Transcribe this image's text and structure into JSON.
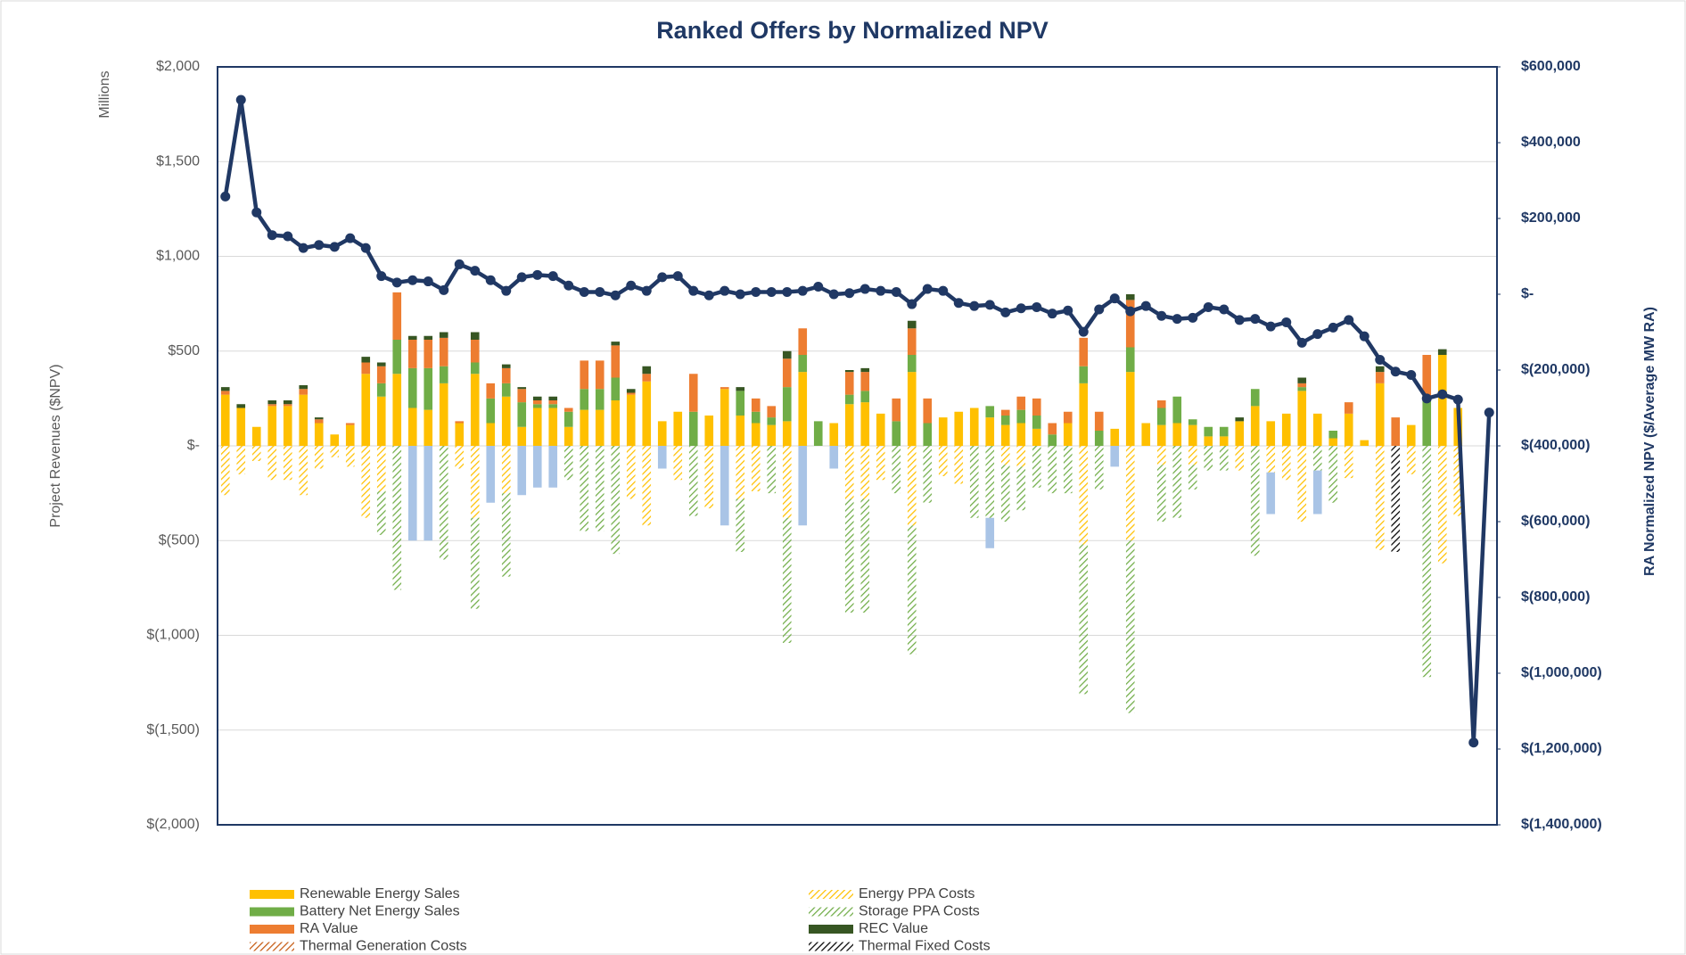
{
  "chart_data": {
    "type": "bar",
    "stacked": true,
    "title": "Ranked Offers by Normalized NPV",
    "ylabel": "Project Revenues ($NPV)",
    "yunit": "Millions",
    "y2label": "RA Normalized NPV ($/Average MW RA)",
    "ylim": [
      -2000,
      2000
    ],
    "yticks": [
      {
        "value": 2000,
        "label": "$2,000"
      },
      {
        "value": 1500,
        "label": "$1,500"
      },
      {
        "value": 1000,
        "label": "$1,000"
      },
      {
        "value": 500,
        "label": "$500"
      },
      {
        "value": 0,
        "label": "$-"
      },
      {
        "value": -500,
        "label": "$(500)"
      },
      {
        "value": -1000,
        "label": "$(1,000)"
      },
      {
        "value": -1500,
        "label": "$(1,500)"
      },
      {
        "value": -2000,
        "label": "$(2,000)"
      }
    ],
    "y2lim": [
      -1400000,
      600000
    ],
    "y2ticks": [
      {
        "value": 600000,
        "label": "$600,000"
      },
      {
        "value": 400000,
        "label": "$400,000"
      },
      {
        "value": 200000,
        "label": "$200,000"
      },
      {
        "value": 0,
        "label": "$-"
      },
      {
        "value": -200000,
        "label": "$(200,000)"
      },
      {
        "value": -400000,
        "label": "$(400,000)"
      },
      {
        "value": -600000,
        "label": "$(600,000)"
      },
      {
        "value": -800000,
        "label": "$(800,000)"
      },
      {
        "value": -1000000,
        "label": "$(1,000,000)"
      },
      {
        "value": -1200000,
        "label": "$(1,200,000)"
      },
      {
        "value": -1400000,
        "label": "$(1,400,000)"
      }
    ],
    "grid": true,
    "categories": [
      null,
      null,
      null,
      null,
      null,
      null,
      null,
      null,
      null,
      null,
      null,
      null,
      null,
      null,
      null,
      null,
      null,
      null,
      null,
      null,
      null,
      null,
      null,
      null,
      null,
      null,
      null,
      null,
      null,
      null,
      null,
      null,
      null,
      null,
      null,
      null,
      null,
      null,
      null,
      null,
      null,
      null,
      null,
      null,
      null,
      null,
      null,
      null,
      null,
      null,
      null,
      null,
      null,
      null,
      null,
      null,
      null,
      null,
      null,
      null,
      null,
      null,
      null,
      null,
      null,
      null,
      null,
      null,
      null,
      null,
      null,
      null,
      null,
      null,
      null,
      null,
      null,
      null,
      null,
      null,
      null,
      null
    ],
    "series": [
      {
        "name": "Renewable Energy Sales",
        "color": "#ffc000",
        "hatch": false,
        "values": [
          270,
          200,
          100,
          210,
          210,
          270,
          120,
          60,
          110,
          380,
          260,
          380,
          200,
          190,
          330,
          120,
          380,
          120,
          260,
          100,
          200,
          200,
          100,
          190,
          190,
          240,
          270,
          340,
          130,
          180,
          0,
          160,
          300,
          160,
          120,
          110,
          130,
          390,
          0,
          120,
          220,
          230,
          170,
          0,
          390,
          0,
          150,
          180,
          200,
          150,
          110,
          120,
          90,
          0,
          120,
          330,
          0,
          90,
          390,
          120,
          110,
          120,
          110,
          50,
          50,
          130,
          210,
          130,
          170,
          290,
          170,
          40,
          170,
          30,
          330,
          0,
          110,
          0,
          480,
          200,
          0,
          0
        ]
      },
      {
        "name": "Energy PPA Costs",
        "color": "#ffc000",
        "hatch": true,
        "values": [
          -260,
          -150,
          -80,
          -180,
          -180,
          -260,
          -120,
          -60,
          -110,
          -380,
          -240,
          0,
          0,
          0,
          0,
          -120,
          -380,
          0,
          -250,
          0,
          0,
          0,
          0,
          0,
          0,
          0,
          -280,
          -420,
          0,
          -180,
          0,
          -330,
          0,
          -280,
          -240,
          0,
          -380,
          0,
          0,
          0,
          -280,
          -280,
          -180,
          0,
          -420,
          0,
          -160,
          -200,
          0,
          0,
          -100,
          -110,
          0,
          0,
          0,
          -520,
          0,
          0,
          -500,
          0,
          -100,
          0,
          -100,
          0,
          0,
          -130,
          0,
          -140,
          -180,
          -400,
          0,
          0,
          -170,
          0,
          -550,
          0,
          -150,
          0,
          -620,
          -370,
          0,
          0
        ]
      },
      {
        "name": "Battery Net Energy Sales",
        "color": "#70ad47",
        "hatch": false,
        "values": [
          0,
          0,
          0,
          0,
          0,
          0,
          0,
          0,
          0,
          0,
          70,
          180,
          210,
          220,
          90,
          0,
          60,
          130,
          70,
          130,
          20,
          20,
          80,
          110,
          110,
          120,
          0,
          0,
          0,
          0,
          180,
          0,
          0,
          130,
          60,
          40,
          180,
          90,
          130,
          0,
          50,
          60,
          0,
          130,
          90,
          120,
          0,
          0,
          0,
          60,
          50,
          70,
          70,
          60,
          0,
          90,
          80,
          0,
          130,
          0,
          90,
          140,
          30,
          50,
          50,
          0,
          90,
          0,
          0,
          20,
          0,
          40,
          0,
          0,
          0,
          0,
          0,
          240,
          0,
          0,
          0,
          0
        ]
      },
      {
        "name": "Storage PPA Costs",
        "color": "#70ad47",
        "hatch": true,
        "values": [
          0,
          0,
          0,
          0,
          0,
          0,
          0,
          0,
          0,
          0,
          -230,
          -760,
          0,
          0,
          -600,
          0,
          -480,
          0,
          -440,
          0,
          0,
          0,
          -180,
          -450,
          -450,
          -570,
          0,
          0,
          0,
          0,
          -370,
          0,
          0,
          -280,
          0,
          -250,
          -660,
          0,
          0,
          0,
          -600,
          -600,
          0,
          -250,
          -680,
          -300,
          0,
          0,
          -380,
          -380,
          -300,
          -230,
          -220,
          -250,
          -250,
          -790,
          -230,
          0,
          -910,
          0,
          -300,
          -380,
          -130,
          -130,
          -130,
          0,
          -580,
          0,
          0,
          0,
          -130,
          -300,
          0,
          0,
          0,
          0,
          0,
          -1220,
          0,
          0,
          0,
          0
        ]
      },
      {
        "name": "RA Value",
        "color": "#ed7d31",
        "hatch": false,
        "values": [
          20,
          0,
          0,
          10,
          10,
          30,
          20,
          0,
          10,
          60,
          90,
          250,
          150,
          150,
          150,
          10,
          120,
          80,
          80,
          70,
          20,
          20,
          20,
          150,
          150,
          170,
          10,
          40,
          0,
          0,
          200,
          0,
          10,
          0,
          70,
          60,
          150,
          140,
          0,
          0,
          120,
          100,
          0,
          120,
          140,
          130,
          0,
          0,
          0,
          0,
          30,
          70,
          90,
          60,
          60,
          150,
          100,
          0,
          250,
          0,
          40,
          0,
          0,
          0,
          0,
          0,
          0,
          0,
          0,
          20,
          0,
          0,
          60,
          0,
          60,
          150,
          0,
          240,
          0,
          0,
          0,
          0
        ]
      },
      {
        "name": "REC Value",
        "color": "#375623",
        "hatch": false,
        "values": [
          20,
          20,
          0,
          20,
          20,
          20,
          10,
          0,
          0,
          30,
          20,
          0,
          20,
          20,
          30,
          0,
          40,
          0,
          20,
          10,
          20,
          20,
          0,
          0,
          0,
          20,
          20,
          40,
          0,
          0,
          0,
          0,
          0,
          20,
          0,
          0,
          40,
          0,
          0,
          0,
          10,
          20,
          0,
          0,
          40,
          0,
          0,
          0,
          0,
          0,
          0,
          0,
          0,
          0,
          0,
          0,
          0,
          0,
          30,
          0,
          0,
          0,
          0,
          0,
          0,
          20,
          0,
          0,
          0,
          30,
          0,
          0,
          0,
          0,
          30,
          0,
          0,
          0,
          30,
          0,
          0,
          0
        ]
      },
      {
        "name": "Thermal Generation Costs",
        "color": "#c55a11",
        "hatch": true,
        "values": [
          0,
          0,
          0,
          0,
          0,
          0,
          0,
          0,
          0,
          0,
          0,
          0,
          0,
          0,
          0,
          0,
          0,
          0,
          0,
          0,
          0,
          0,
          0,
          0,
          0,
          0,
          0,
          0,
          0,
          0,
          0,
          0,
          0,
          0,
          0,
          0,
          0,
          0,
          0,
          0,
          0,
          0,
          0,
          0,
          0,
          0,
          0,
          0,
          0,
          0,
          0,
          0,
          0,
          0,
          0,
          0,
          0,
          0,
          0,
          0,
          0,
          0,
          0,
          0,
          0,
          0,
          0,
          0,
          0,
          0,
          0,
          0,
          0,
          0,
          0,
          0,
          0,
          0,
          0,
          0,
          0,
          0
        ]
      },
      {
        "name": "Thermal Fixed Costs",
        "color": "#000000",
        "hatch": true,
        "values": [
          0,
          0,
          0,
          0,
          0,
          0,
          0,
          0,
          0,
          0,
          0,
          0,
          0,
          0,
          0,
          0,
          0,
          0,
          0,
          0,
          0,
          0,
          0,
          0,
          0,
          0,
          0,
          0,
          0,
          0,
          0,
          0,
          0,
          0,
          0,
          0,
          0,
          0,
          0,
          0,
          0,
          0,
          0,
          0,
          0,
          0,
          0,
          0,
          0,
          0,
          0,
          0,
          0,
          0,
          0,
          0,
          0,
          0,
          0,
          0,
          0,
          0,
          0,
          0,
          0,
          0,
          0,
          0,
          0,
          0,
          0,
          0,
          0,
          0,
          0,
          -560,
          0,
          0,
          0,
          0,
          0,
          0
        ]
      },
      {
        "color": "#a9c4e6",
        "hatch": false,
        "values": [
          0,
          0,
          0,
          0,
          0,
          0,
          0,
          0,
          0,
          0,
          0,
          0,
          -500,
          -500,
          0,
          0,
          0,
          -300,
          0,
          -260,
          -220,
          -220,
          0,
          0,
          0,
          0,
          0,
          0,
          -120,
          0,
          0,
          0,
          -420,
          0,
          0,
          0,
          0,
          -420,
          0,
          -120,
          0,
          0,
          0,
          0,
          0,
          0,
          0,
          0,
          0,
          -160,
          0,
          0,
          0,
          0,
          0,
          0,
          0,
          -110,
          0,
          0,
          0,
          0,
          0,
          0,
          0,
          0,
          0,
          -220,
          0,
          0,
          -230,
          0,
          0,
          0,
          0,
          0,
          0,
          0,
          0,
          0,
          0,
          0
        ]
      },
      {
        "type": "line",
        "axis": "y2",
        "color": "#203864",
        "values": [
          258000,
          513000,
          216000,
          156000,
          153000,
          122000,
          130000,
          125000,
          148000,
          122000,
          48000,
          31000,
          37000,
          34000,
          11000,
          79000,
          62000,
          37000,
          9000,
          45000,
          51000,
          48000,
          23000,
          6000,
          6000,
          -3000,
          23000,
          9000,
          45000,
          48000,
          9000,
          -3000,
          9000,
          0,
          6000,
          6000,
          6000,
          9000,
          20000,
          0,
          3000,
          14000,
          9000,
          6000,
          -26000,
          14000,
          9000,
          -23000,
          -31000,
          -28000,
          -48000,
          -37000,
          -34000,
          -51000,
          -43000,
          -99000,
          -40000,
          -11000,
          -45000,
          -31000,
          -57000,
          -65000,
          -62000,
          -34000,
          -40000,
          -68000,
          -65000,
          -85000,
          -74000,
          -128000,
          -105000,
          -88000,
          -68000,
          -111000,
          -173000,
          -204000,
          -213000,
          -275000,
          -264000,
          -278000,
          -1183000,
          -312000
        ]
      }
    ]
  }
}
